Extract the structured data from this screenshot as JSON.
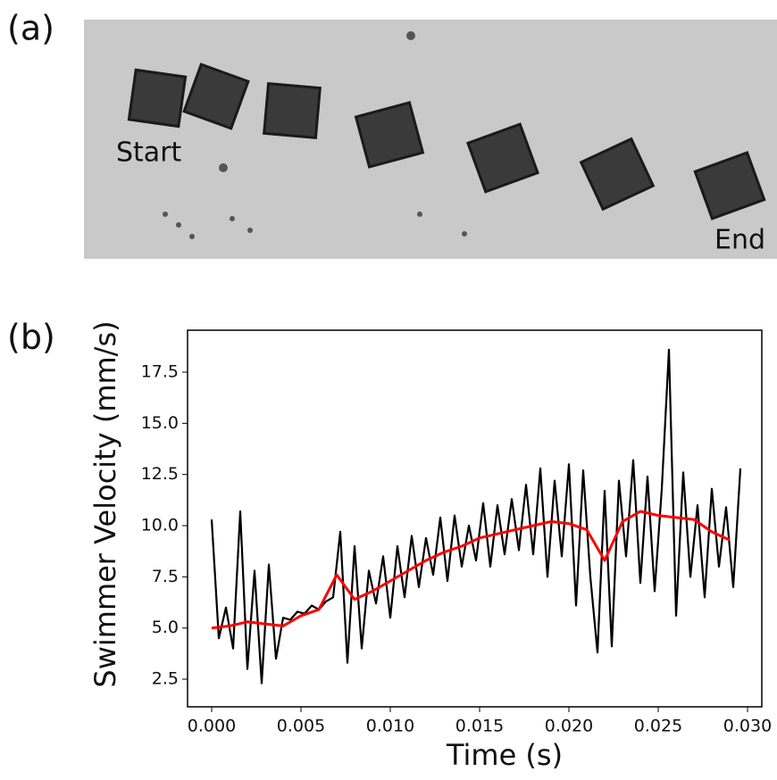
{
  "panel_a": {
    "label": "(a)",
    "start_label": "Start",
    "end_label": "End"
  },
  "panel_b": {
    "label": "(b)"
  },
  "chart_data": {
    "type": "line",
    "xlabel": "Time (s)",
    "ylabel": "Swimmer Velocity (mm/s)",
    "xlim": [
      -0.00135,
      0.0308
    ],
    "ylim": [
      1.15,
      19.55
    ],
    "xticks": [
      {
        "value": 0,
        "label": "0.000"
      },
      {
        "value": 0.005,
        "label": "0.005"
      },
      {
        "value": 0.01,
        "label": "0.010"
      },
      {
        "value": 0.015,
        "label": "0.015"
      },
      {
        "value": 0.02,
        "label": "0.020"
      },
      {
        "value": 0.025,
        "label": "0.025"
      },
      {
        "value": 0.03,
        "label": "0.030"
      }
    ],
    "yticks": [
      2.5,
      {
        "value": 5,
        "label": "5.0"
      },
      7.5,
      {
        "value": 10,
        "label": "10.0"
      },
      12.5,
      {
        "value": 15,
        "label": "15.0"
      },
      17.5
    ],
    "series": [
      {
        "color": "#000000",
        "x": [
          0,
          0.0004,
          0.0008,
          0.0012,
          0.0016,
          0.002,
          0.0024,
          0.0028,
          0.0032,
          0.0036,
          0.004,
          0.0044,
          0.0048,
          0.0052,
          0.0056,
          0.006,
          0.0064,
          0.0068,
          0.0072,
          0.0076,
          0.008,
          0.0084,
          0.0088,
          0.0092,
          0.0096,
          0.01,
          0.0104,
          0.0108,
          0.0112,
          0.0116,
          0.012,
          0.0124,
          0.0128,
          0.0132,
          0.0136,
          0.014,
          0.0144,
          0.0148,
          0.0152,
          0.0156,
          0.016,
          0.0164,
          0.0168,
          0.0172,
          0.0176,
          0.018,
          0.0184,
          0.0188,
          0.0192,
          0.0196,
          0.02,
          0.0204,
          0.0208,
          0.0212,
          0.0216,
          0.022,
          0.0224,
          0.0228,
          0.0232,
          0.0236,
          0.024,
          0.0244,
          0.0248,
          0.0252,
          0.0256,
          0.026,
          0.0264,
          0.0268,
          0.0272,
          0.0276,
          0.028,
          0.0284,
          0.0288,
          0.0292,
          0.0296
        ],
        "values": [
          10.3,
          4.5,
          6.0,
          4.0,
          10.7,
          3.0,
          7.8,
          2.3,
          8.1,
          3.5,
          5.5,
          5.4,
          5.8,
          5.7,
          6.1,
          5.9,
          6.3,
          6.5,
          9.7,
          3.3,
          9.0,
          4.0,
          7.8,
          6.2,
          8.5,
          5.5,
          9.0,
          6.5,
          9.5,
          7.0,
          9.4,
          7.6,
          10.4,
          7.3,
          10.5,
          8.0,
          10.0,
          8.3,
          11.1,
          8.0,
          11.0,
          8.6,
          11.3,
          8.8,
          12.0,
          8.6,
          12.8,
          7.5,
          12.2,
          8.5,
          13.0,
          6.1,
          12.7,
          7.5,
          3.8,
          11.7,
          4.1,
          12.2,
          8.5,
          13.2,
          7.2,
          12.4,
          6.8,
          11.8,
          18.6,
          5.6,
          12.6,
          7.5,
          11.0,
          6.5,
          11.8,
          8.0,
          10.9,
          7.0,
          12.8
        ]
      },
      {
        "color": "#ff0000",
        "x": [
          0,
          0.001,
          0.002,
          0.003,
          0.004,
          0.005,
          0.006,
          0.007,
          0.008,
          0.009,
          0.01,
          0.011,
          0.012,
          0.013,
          0.014,
          0.015,
          0.016,
          0.017,
          0.018,
          0.019,
          0.02,
          0.021,
          0.022,
          0.023,
          0.024,
          0.025,
          0.026,
          0.027,
          0.028,
          0.029
        ],
        "values": [
          5.0,
          5.1,
          5.3,
          5.2,
          5.1,
          5.6,
          5.9,
          7.6,
          6.4,
          6.8,
          7.3,
          7.8,
          8.3,
          8.7,
          9.0,
          9.4,
          9.6,
          9.8,
          10.0,
          10.2,
          10.1,
          9.8,
          8.3,
          10.2,
          10.7,
          10.5,
          10.4,
          10.3,
          9.7,
          9.3
        ]
      }
    ]
  }
}
